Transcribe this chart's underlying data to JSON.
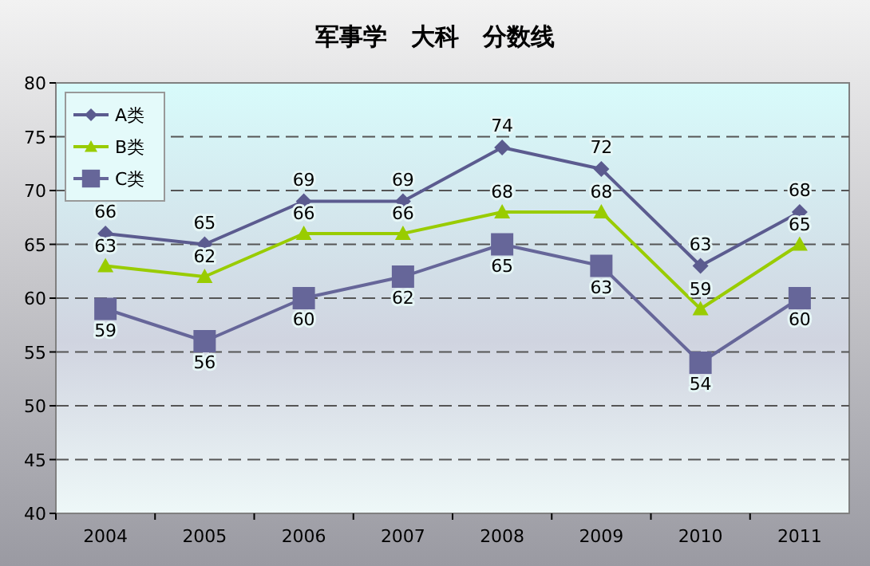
{
  "chart_data": {
    "type": "line",
    "title": "军事学　大科　分数线",
    "categories": [
      "2004",
      "2005",
      "2006",
      "2007",
      "2008",
      "2009",
      "2010",
      "2011"
    ],
    "series": [
      {
        "name": "A类",
        "color": "#5b5b8f",
        "marker": "diamond",
        "values": [
          66,
          65,
          69,
          69,
          74,
          72,
          63,
          68
        ]
      },
      {
        "name": "B类",
        "color": "#99cc00",
        "marker": "triangle",
        "values": [
          63,
          62,
          66,
          66,
          68,
          68,
          59,
          65
        ]
      },
      {
        "name": "C类",
        "color": "#666699",
        "marker": "square",
        "values": [
          59,
          56,
          60,
          62,
          65,
          63,
          54,
          60
        ]
      }
    ],
    "ylim": [
      40,
      80
    ],
    "yticks": [
      40,
      45,
      50,
      55,
      60,
      65,
      70,
      75,
      80
    ],
    "grid": "y",
    "legend": "top left",
    "data_labels": true
  }
}
